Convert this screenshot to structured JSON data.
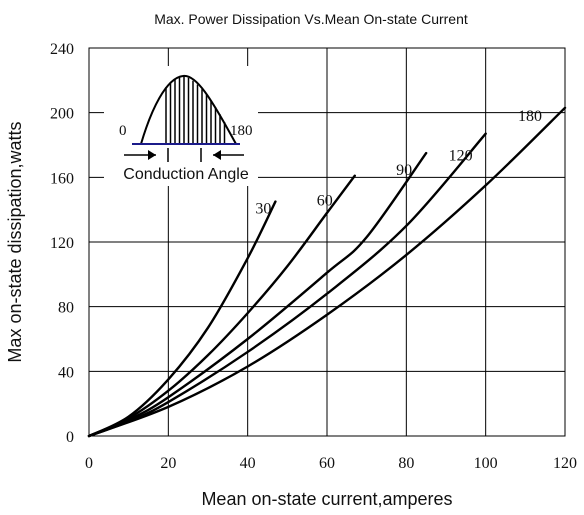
{
  "chart_data": {
    "type": "line",
    "title": "Max. Power Dissipation Vs.Mean On-state Current",
    "xlabel": "Mean on-state current,amperes",
    "ylabel": "Max on-state dissipation,watts",
    "xlim": [
      0,
      120
    ],
    "ylim": [
      0,
      240
    ],
    "x_ticks": [
      "0",
      "20",
      "40",
      "60",
      "80",
      "100",
      "120"
    ],
    "y_ticks": [
      "0",
      "40",
      "80",
      "120",
      "160",
      "200",
      "240"
    ],
    "grid": true,
    "series": [
      {
        "name": "30",
        "x": [
          0,
          10,
          20,
          30,
          40,
          47
        ],
        "y": [
          0,
          12,
          35,
          67,
          110,
          145
        ]
      },
      {
        "name": "60",
        "x": [
          0,
          10,
          20,
          30,
          40,
          50,
          60,
          67
        ],
        "y": [
          0,
          11,
          28,
          50,
          76,
          105,
          138,
          161
        ]
      },
      {
        "name": "90",
        "x": [
          0,
          10,
          20,
          40,
          60,
          70,
          85
        ],
        "y": [
          0,
          10,
          24,
          60,
          101,
          123,
          175
        ]
      },
      {
        "name": "120",
        "x": [
          0,
          10,
          20,
          40,
          60,
          80,
          100
        ],
        "y": [
          0,
          9,
          21,
          52,
          88,
          130,
          187
        ]
      },
      {
        "name": "180",
        "x": [
          0,
          20,
          40,
          60,
          80,
          100,
          120
        ],
        "y": [
          0,
          18,
          43,
          75,
          112,
          155,
          203
        ]
      }
    ],
    "inset": {
      "left_label": "0",
      "right_label": "180",
      "caption": "Conduction Angle"
    }
  }
}
